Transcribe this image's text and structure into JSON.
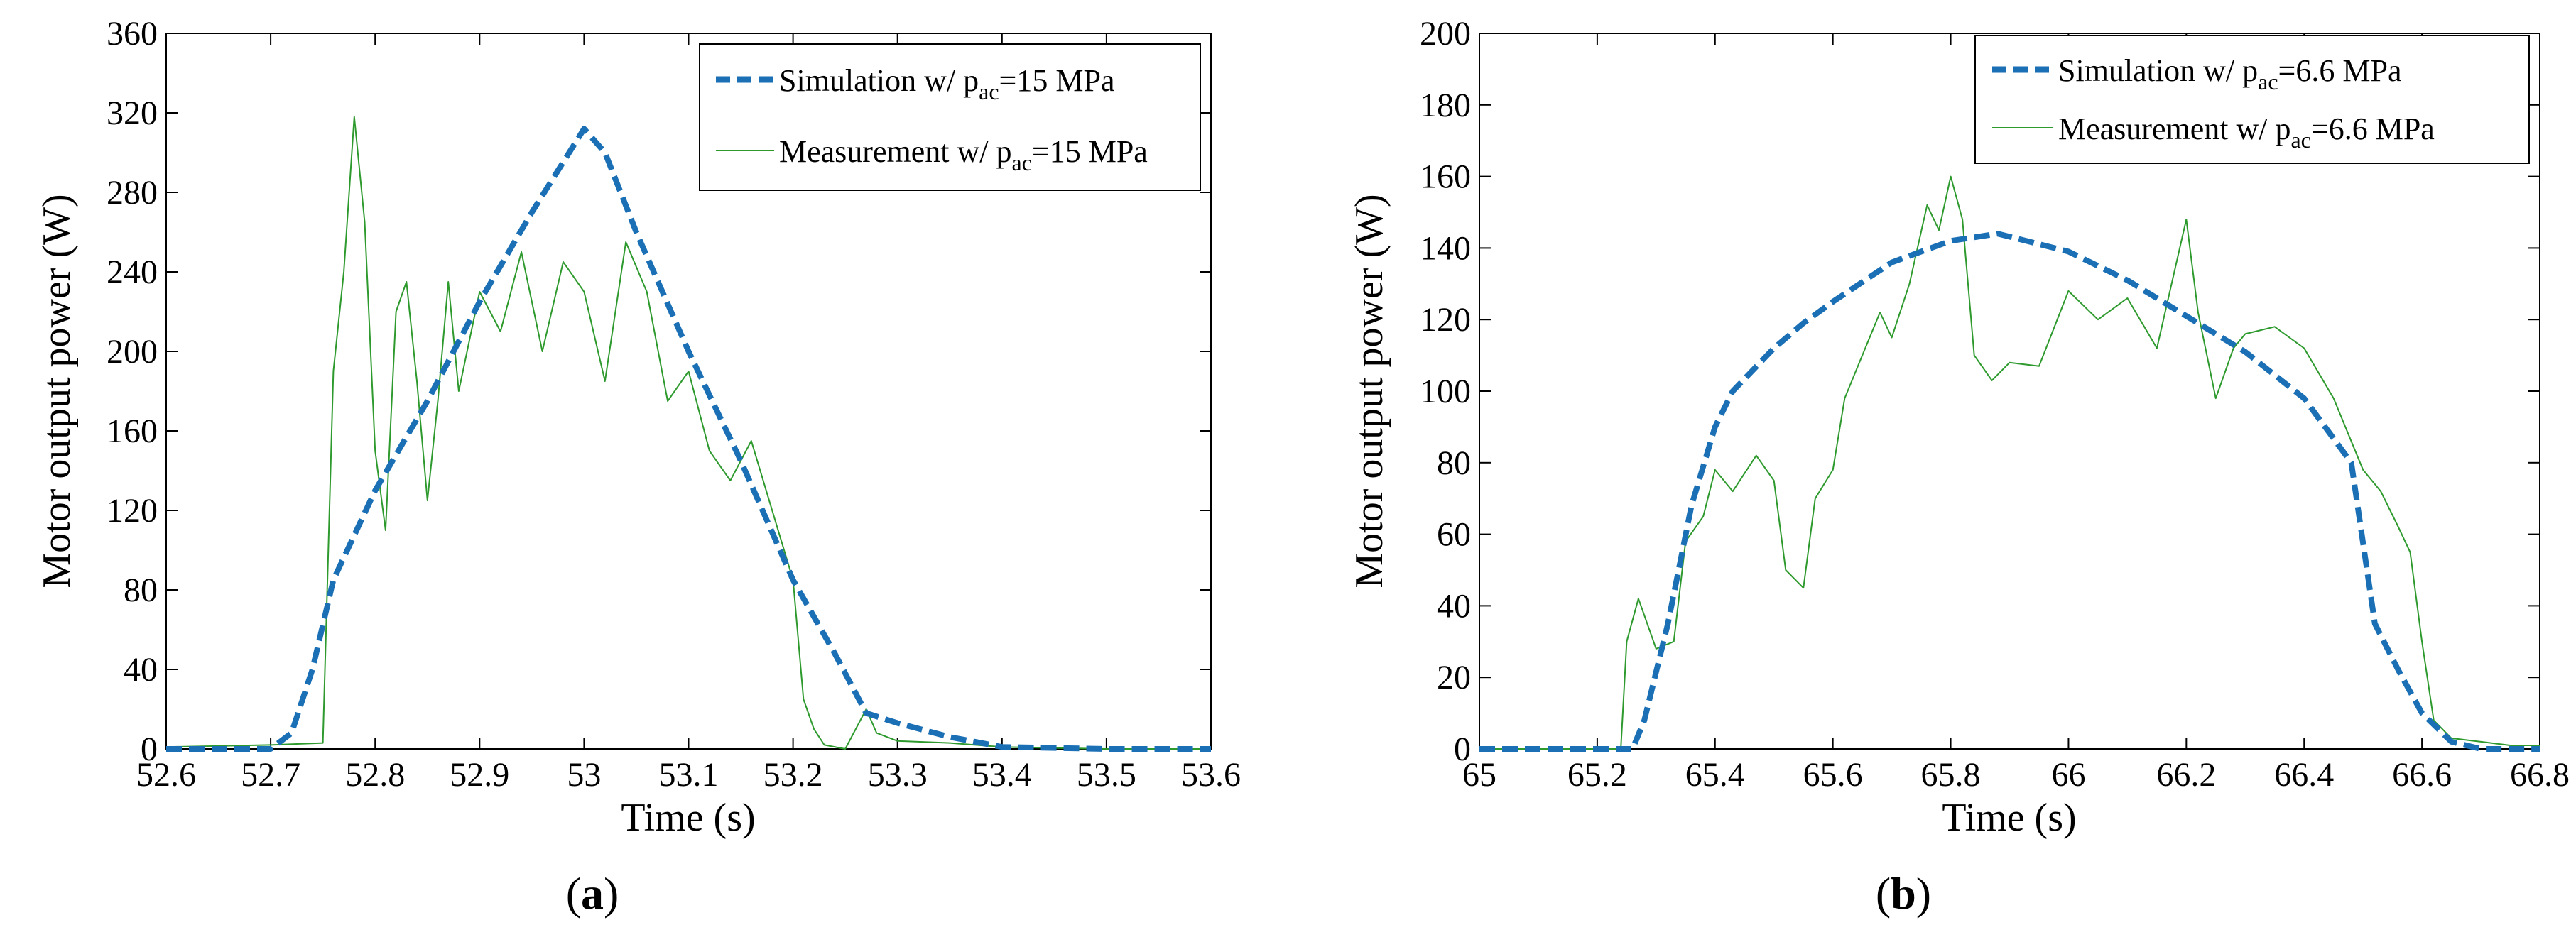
{
  "chart_data": [
    {
      "type": "line",
      "panel_label": "a",
      "xlabel": "Time (s)",
      "ylabel": "Motor output power (W)",
      "xlim": [
        52.6,
        53.6
      ],
      "ylim": [
        0,
        360
      ],
      "x_ticks": [
        52.6,
        52.7,
        52.8,
        52.9,
        53,
        53.1,
        53.2,
        53.3,
        53.4,
        53.5,
        53.6
      ],
      "y_ticks": [
        0,
        40,
        80,
        120,
        160,
        200,
        240,
        280,
        320,
        360
      ],
      "legend_position": "top-right",
      "series": [
        {
          "name": "Simulation w/ pac=15 MPa",
          "legend_prefix": "Simulation w/ p",
          "legend_sub": "ac",
          "legend_suffix": "=15 MPa",
          "color": "#1a6fb5",
          "style": "dashed",
          "x": [
            52.6,
            52.7,
            52.72,
            52.74,
            52.76,
            52.8,
            52.85,
            52.9,
            52.95,
            53.0,
            53.02,
            53.05,
            53.1,
            53.15,
            53.2,
            53.24,
            53.27,
            53.3,
            53.35,
            53.4,
            53.5,
            53.6
          ],
          "y": [
            0,
            0,
            8,
            40,
            85,
            130,
            175,
            225,
            270,
            312,
            300,
            260,
            200,
            145,
            85,
            48,
            18,
            13,
            6,
            1,
            0,
            0
          ]
        },
        {
          "name": "Measurement w/ pac=15 MPa",
          "legend_prefix": "Measurement w/ p",
          "legend_sub": "ac",
          "legend_suffix": "=15 MPa",
          "color": "#2e9a2e",
          "style": "solid-thin",
          "x": [
            52.6,
            52.7,
            52.75,
            52.76,
            52.77,
            52.78,
            52.79,
            52.8,
            52.81,
            52.82,
            52.83,
            52.84,
            52.85,
            52.86,
            52.87,
            52.88,
            52.9,
            52.92,
            52.94,
            52.96,
            52.98,
            53.0,
            53.02,
            53.04,
            53.06,
            53.08,
            53.1,
            53.12,
            53.14,
            53.16,
            53.18,
            53.2,
            53.21,
            53.22,
            53.23,
            53.25,
            53.27,
            53.28,
            53.3,
            53.35,
            53.4,
            53.5,
            53.6
          ],
          "y": [
            1,
            2,
            3,
            190,
            240,
            318,
            265,
            150,
            110,
            220,
            235,
            185,
            125,
            175,
            235,
            180,
            230,
            210,
            250,
            200,
            245,
            230,
            185,
            255,
            230,
            175,
            190,
            150,
            135,
            155,
            120,
            85,
            25,
            10,
            2,
            0,
            20,
            8,
            4,
            3,
            1,
            0,
            0
          ]
        }
      ]
    },
    {
      "type": "line",
      "panel_label": "b",
      "xlabel": "Time (s)",
      "ylabel": "Motor output power (W)",
      "xlim": [
        65,
        66.8
      ],
      "ylim": [
        0,
        200
      ],
      "x_ticks": [
        65,
        65.2,
        65.4,
        65.6,
        65.8,
        66,
        66.2,
        66.4,
        66.6,
        66.8
      ],
      "y_ticks": [
        0,
        20,
        40,
        60,
        80,
        100,
        120,
        140,
        160,
        180,
        200
      ],
      "legend_position": "top-right",
      "series": [
        {
          "name": "Simulation w/ pac=6.6 MPa",
          "legend_prefix": "Simulation w/ p",
          "legend_sub": "ac",
          "legend_suffix": "=6.6 MPa",
          "color": "#1a6fb5",
          "style": "dashed",
          "x": [
            65.0,
            65.26,
            65.28,
            65.32,
            65.36,
            65.4,
            65.43,
            65.5,
            65.55,
            65.6,
            65.7,
            65.8,
            65.88,
            66.0,
            66.1,
            66.2,
            66.3,
            66.4,
            66.48,
            66.52,
            66.56,
            66.6,
            66.65,
            66.7,
            66.8
          ],
          "y": [
            0,
            0,
            8,
            35,
            68,
            90,
            100,
            112,
            119,
            125,
            136,
            142,
            144,
            139,
            131,
            121,
            111,
            98,
            80,
            35,
            22,
            10,
            2,
            0,
            0
          ]
        },
        {
          "name": "Measurement w/ pac=6.6 MPa",
          "legend_prefix": "Measurement w/ p",
          "legend_sub": "ac",
          "legend_suffix": "=6.6 MPa",
          "color": "#2e9a2e",
          "style": "solid-thin",
          "x": [
            65.0,
            65.24,
            65.25,
            65.27,
            65.3,
            65.33,
            65.35,
            65.38,
            65.4,
            65.43,
            65.47,
            65.5,
            65.52,
            65.55,
            65.57,
            65.6,
            65.62,
            65.65,
            65.68,
            65.7,
            65.73,
            65.76,
            65.78,
            65.8,
            65.82,
            65.84,
            65.87,
            65.9,
            65.95,
            66.0,
            66.05,
            66.1,
            66.15,
            66.2,
            66.22,
            66.25,
            66.28,
            66.3,
            66.35,
            66.4,
            66.45,
            66.5,
            66.53,
            66.56,
            66.58,
            66.6,
            66.62,
            66.65,
            66.7,
            66.75,
            66.8
          ],
          "y": [
            0,
            0,
            30,
            42,
            28,
            30,
            58,
            65,
            78,
            72,
            82,
            75,
            50,
            45,
            70,
            78,
            98,
            110,
            122,
            115,
            130,
            152,
            145,
            160,
            148,
            110,
            103,
            108,
            107,
            128,
            120,
            126,
            112,
            148,
            122,
            98,
            112,
            116,
            118,
            112,
            98,
            78,
            72,
            62,
            55,
            30,
            8,
            3,
            2,
            1,
            1
          ]
        }
      ]
    }
  ]
}
